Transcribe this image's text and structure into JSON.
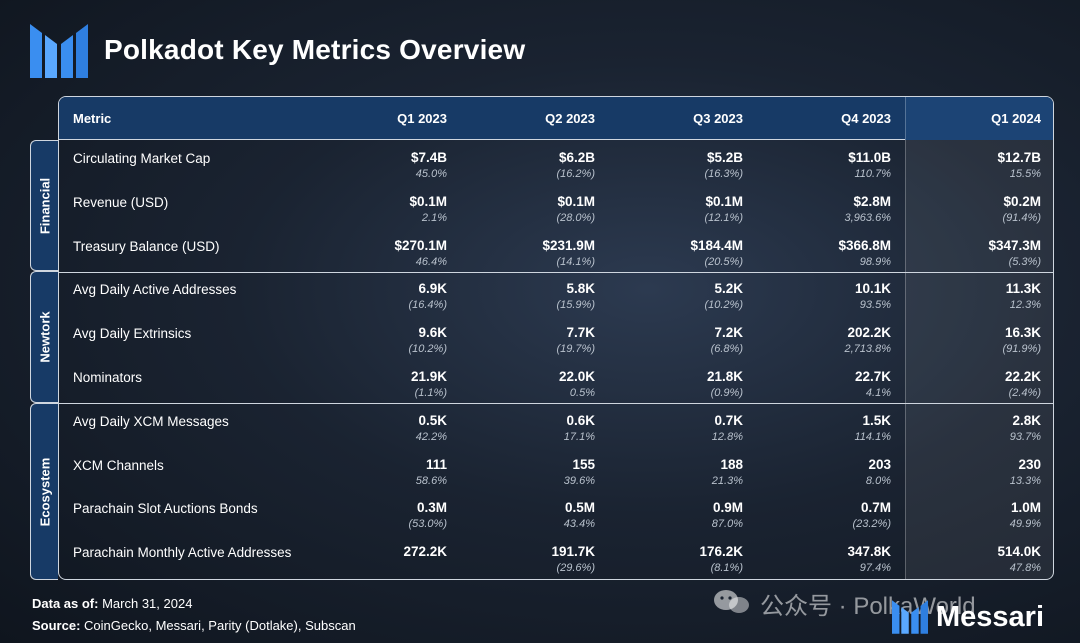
{
  "header": {
    "title": "Polkadot Key Metrics Overview"
  },
  "table": {
    "metric_header": "Metric",
    "columns": [
      "Q1 2023",
      "Q2 2023",
      "Q3 2023",
      "Q4 2023",
      "Q1 2024"
    ]
  },
  "sections": [
    {
      "label": "Financial"
    },
    {
      "label": "Newtork"
    },
    {
      "label": "Ecosystem"
    }
  ],
  "chart_data": {
    "type": "table",
    "title": "Polkadot Key Metrics Overview",
    "columns": [
      "Q1 2023",
      "Q2 2023",
      "Q3 2023",
      "Q4 2023",
      "Q1 2024"
    ],
    "rows": [
      {
        "section": "Financial",
        "metric": "Circulating Market Cap",
        "values": [
          "$7.4B",
          "$6.2B",
          "$5.2B",
          "$11.0B",
          "$12.7B"
        ],
        "changes": [
          "45.0%",
          "(16.2%)",
          "(16.3%)",
          "110.7%",
          "15.5%"
        ]
      },
      {
        "section": "Financial",
        "metric": "Revenue (USD)",
        "values": [
          "$0.1M",
          "$0.1M",
          "$0.1M",
          "$2.8M",
          "$0.2M"
        ],
        "changes": [
          "2.1%",
          "(28.0%)",
          "(12.1%)",
          "3,963.6%",
          "(91.4%)"
        ]
      },
      {
        "section": "Financial",
        "metric": "Treasury Balance (USD)",
        "values": [
          "$270.1M",
          "$231.9M",
          "$184.4M",
          "$366.8M",
          "$347.3M"
        ],
        "changes": [
          "46.4%",
          "(14.1%)",
          "(20.5%)",
          "98.9%",
          "(5.3%)"
        ]
      },
      {
        "section": "Newtork",
        "metric": "Avg Daily Active Addresses",
        "values": [
          "6.9K",
          "5.8K",
          "5.2K",
          "10.1K",
          "11.3K"
        ],
        "changes": [
          "(16.4%)",
          "(15.9%)",
          "(10.2%)",
          "93.5%",
          "12.3%"
        ]
      },
      {
        "section": "Newtork",
        "metric": "Avg Daily Extrinsics",
        "values": [
          "9.6K",
          "7.7K",
          "7.2K",
          "202.2K",
          "16.3K"
        ],
        "changes": [
          "(10.2%)",
          "(19.7%)",
          "(6.8%)",
          "2,713.8%",
          "(91.9%)"
        ]
      },
      {
        "section": "Newtork",
        "metric": "Nominators",
        "values": [
          "21.9K",
          "22.0K",
          "21.8K",
          "22.7K",
          "22.2K"
        ],
        "changes": [
          "(1.1%)",
          "0.5%",
          "(0.9%)",
          "4.1%",
          "(2.4%)"
        ]
      },
      {
        "section": "Ecosystem",
        "metric": "Avg Daily XCM Messages",
        "values": [
          "0.5K",
          "0.6K",
          "0.7K",
          "1.5K",
          "2.8K"
        ],
        "changes": [
          "42.2%",
          "17.1%",
          "12.8%",
          "114.1%",
          "93.7%"
        ]
      },
      {
        "section": "Ecosystem",
        "metric": "XCM Channels",
        "values": [
          "111",
          "155",
          "188",
          "203",
          "230"
        ],
        "changes": [
          "58.6%",
          "39.6%",
          "21.3%",
          "8.0%",
          "13.3%"
        ]
      },
      {
        "section": "Ecosystem",
        "metric": "Parachain Slot Auctions Bonds",
        "values": [
          "0.3M",
          "0.5M",
          "0.9M",
          "0.7M",
          "1.0M"
        ],
        "changes": [
          "(53.0%)",
          "43.4%",
          "87.0%",
          "(23.2%)",
          "49.9%"
        ]
      },
      {
        "section": "Ecosystem",
        "metric": "Parachain Monthly Active Addresses",
        "values": [
          "272.2K",
          "191.7K",
          "176.2K",
          "347.8K",
          "514.0K"
        ],
        "changes": [
          "",
          "(29.6%)",
          "(8.1%)",
          "97.4%",
          "47.8%"
        ]
      }
    ]
  },
  "footer": {
    "data_as_of_label": "Data as of:",
    "data_as_of_value": "March 31, 2024",
    "source_label": "Source:",
    "source_value": "CoinGecko, Messari, Parity (Dotlake), Subscan"
  },
  "watermark": {
    "text": "公众号 · PolkaWorld"
  },
  "brand": {
    "name": "Messari"
  },
  "colors": {
    "header_fill": "#173a66",
    "background": "#1a2331",
    "border": "#cfd6df",
    "change_text": "#b9c2cd"
  },
  "icons": {
    "top_logo": "messari-logo-icon",
    "wechat": "wechat-icon"
  }
}
